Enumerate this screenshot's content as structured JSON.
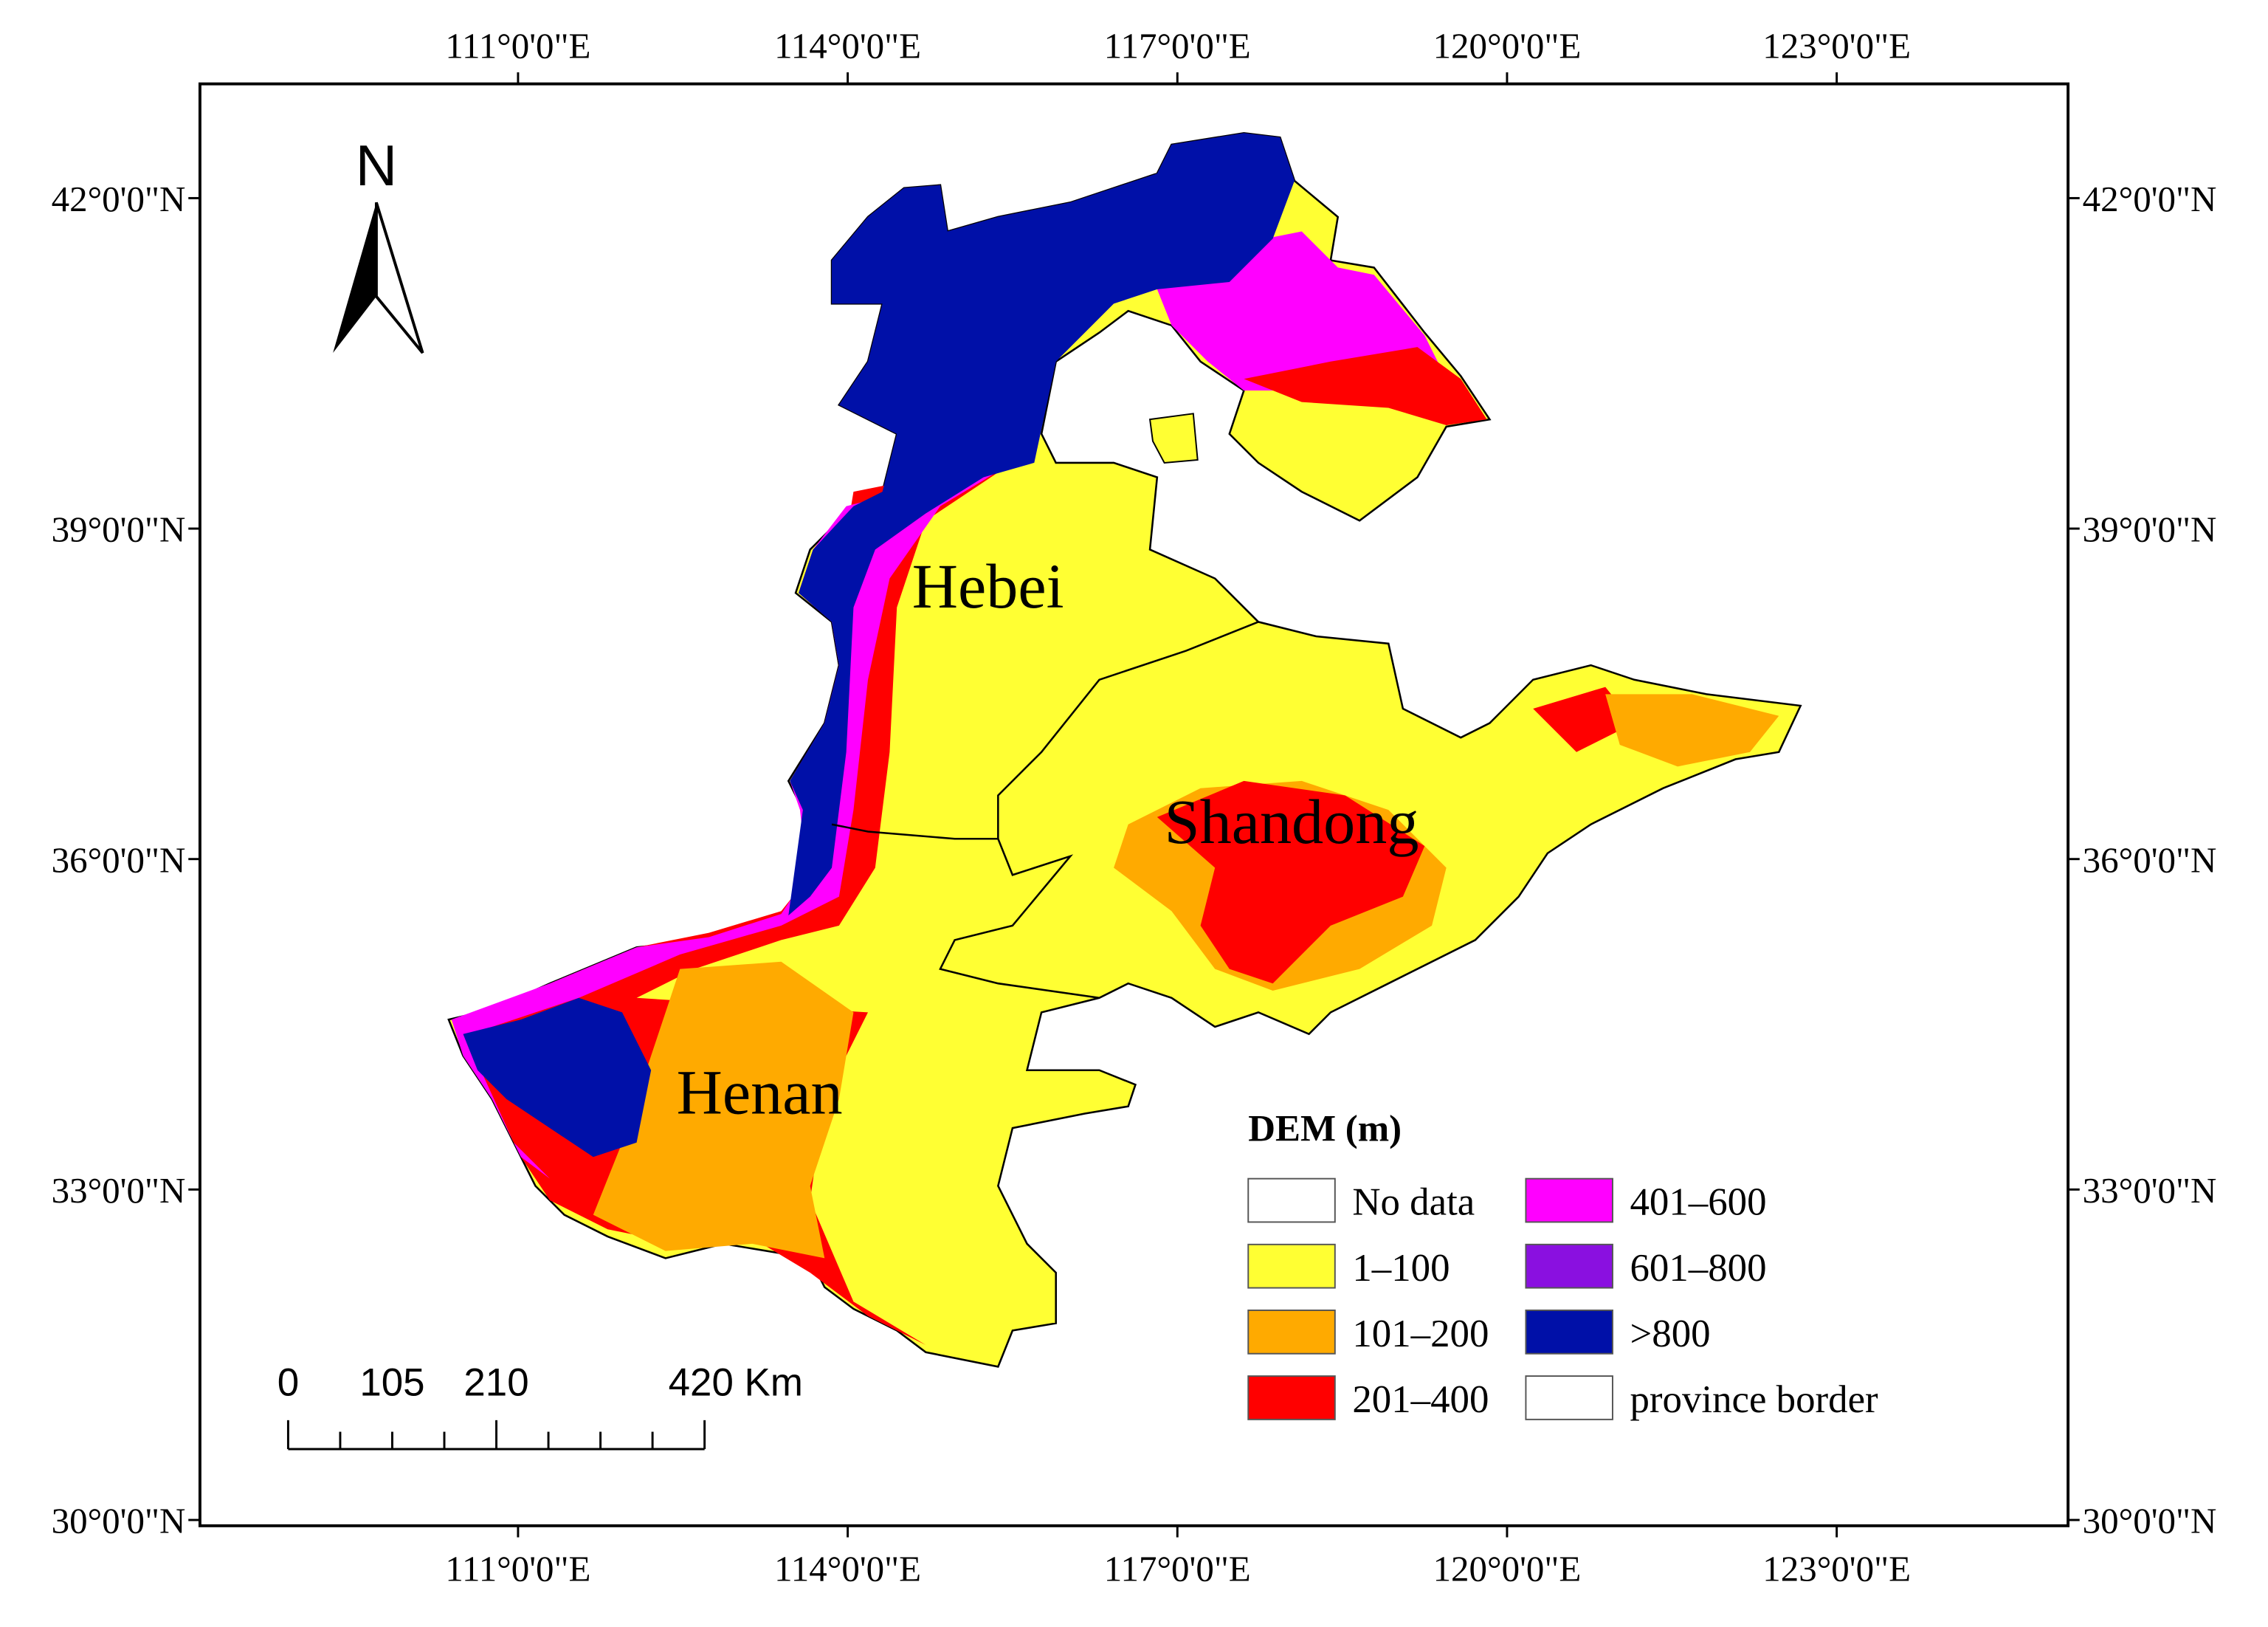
{
  "map": {
    "north_label": "N",
    "x_axis_labels": [
      "111°0'0\"E",
      "114°0'0\"E",
      "117°0'0\"E",
      "120°0'0\"E",
      "123°0'0\"E"
    ],
    "y_axis_labels": [
      "42°0'0\"N",
      "39°0'0\"N",
      "36°0'0\"N",
      "33°0'0\"N",
      "30°0'0\"N"
    ],
    "regions": [
      "Hebei",
      "Shandong",
      "Henan"
    ],
    "legend": {
      "title": "DEM (m)",
      "items": [
        {
          "label": "No data",
          "color": "#ffffff"
        },
        {
          "label": "1–100",
          "color": "#ffff33"
        },
        {
          "label": "101–200",
          "color": "#ffaa00"
        },
        {
          "label": "201–400",
          "color": "#ff0000"
        },
        {
          "label": "401–600",
          "color": "#ff00ff"
        },
        {
          "label": "601–800",
          "color": "#8a10e0"
        },
        {
          "label": ">800",
          "color": "#0010a8"
        },
        {
          "label": "province border",
          "color": "#ffffff"
        }
      ]
    },
    "scale_bar": {
      "labels": [
        "0",
        "105",
        "210",
        "420 Km"
      ]
    }
  }
}
